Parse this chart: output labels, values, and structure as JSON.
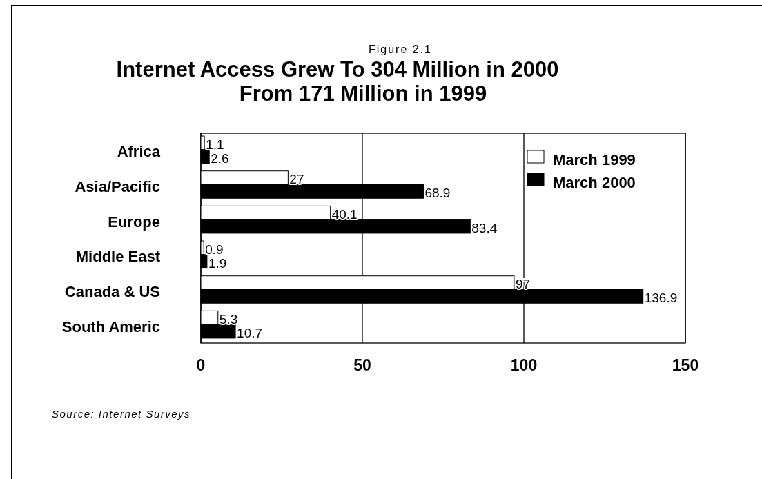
{
  "chart_data": {
    "type": "bar",
    "orientation": "horizontal",
    "subtitle": "Figure 2.1",
    "title": "Internet Access Grew To 304 Million in 2000\nFrom 171 Million in 1999",
    "categories": [
      "Africa",
      "Asia/Pacific",
      "Europe",
      "Middle East",
      "Canada & US",
      "South Americ"
    ],
    "series": [
      {
        "name": "March 1999",
        "color": "#ffffff",
        "values": [
          1.1,
          27,
          40.1,
          0.9,
          97,
          5.3
        ]
      },
      {
        "name": "March 2000",
        "color": "#000000",
        "values": [
          2.6,
          68.9,
          83.4,
          1.9,
          136.9,
          10.7
        ]
      }
    ],
    "xlim": [
      0,
      150
    ],
    "xticks": [
      0,
      50,
      100,
      150
    ],
    "grid": "x",
    "legend": "top right",
    "data_labels": true,
    "annotations": [
      "Source: Internet Surveys"
    ]
  }
}
